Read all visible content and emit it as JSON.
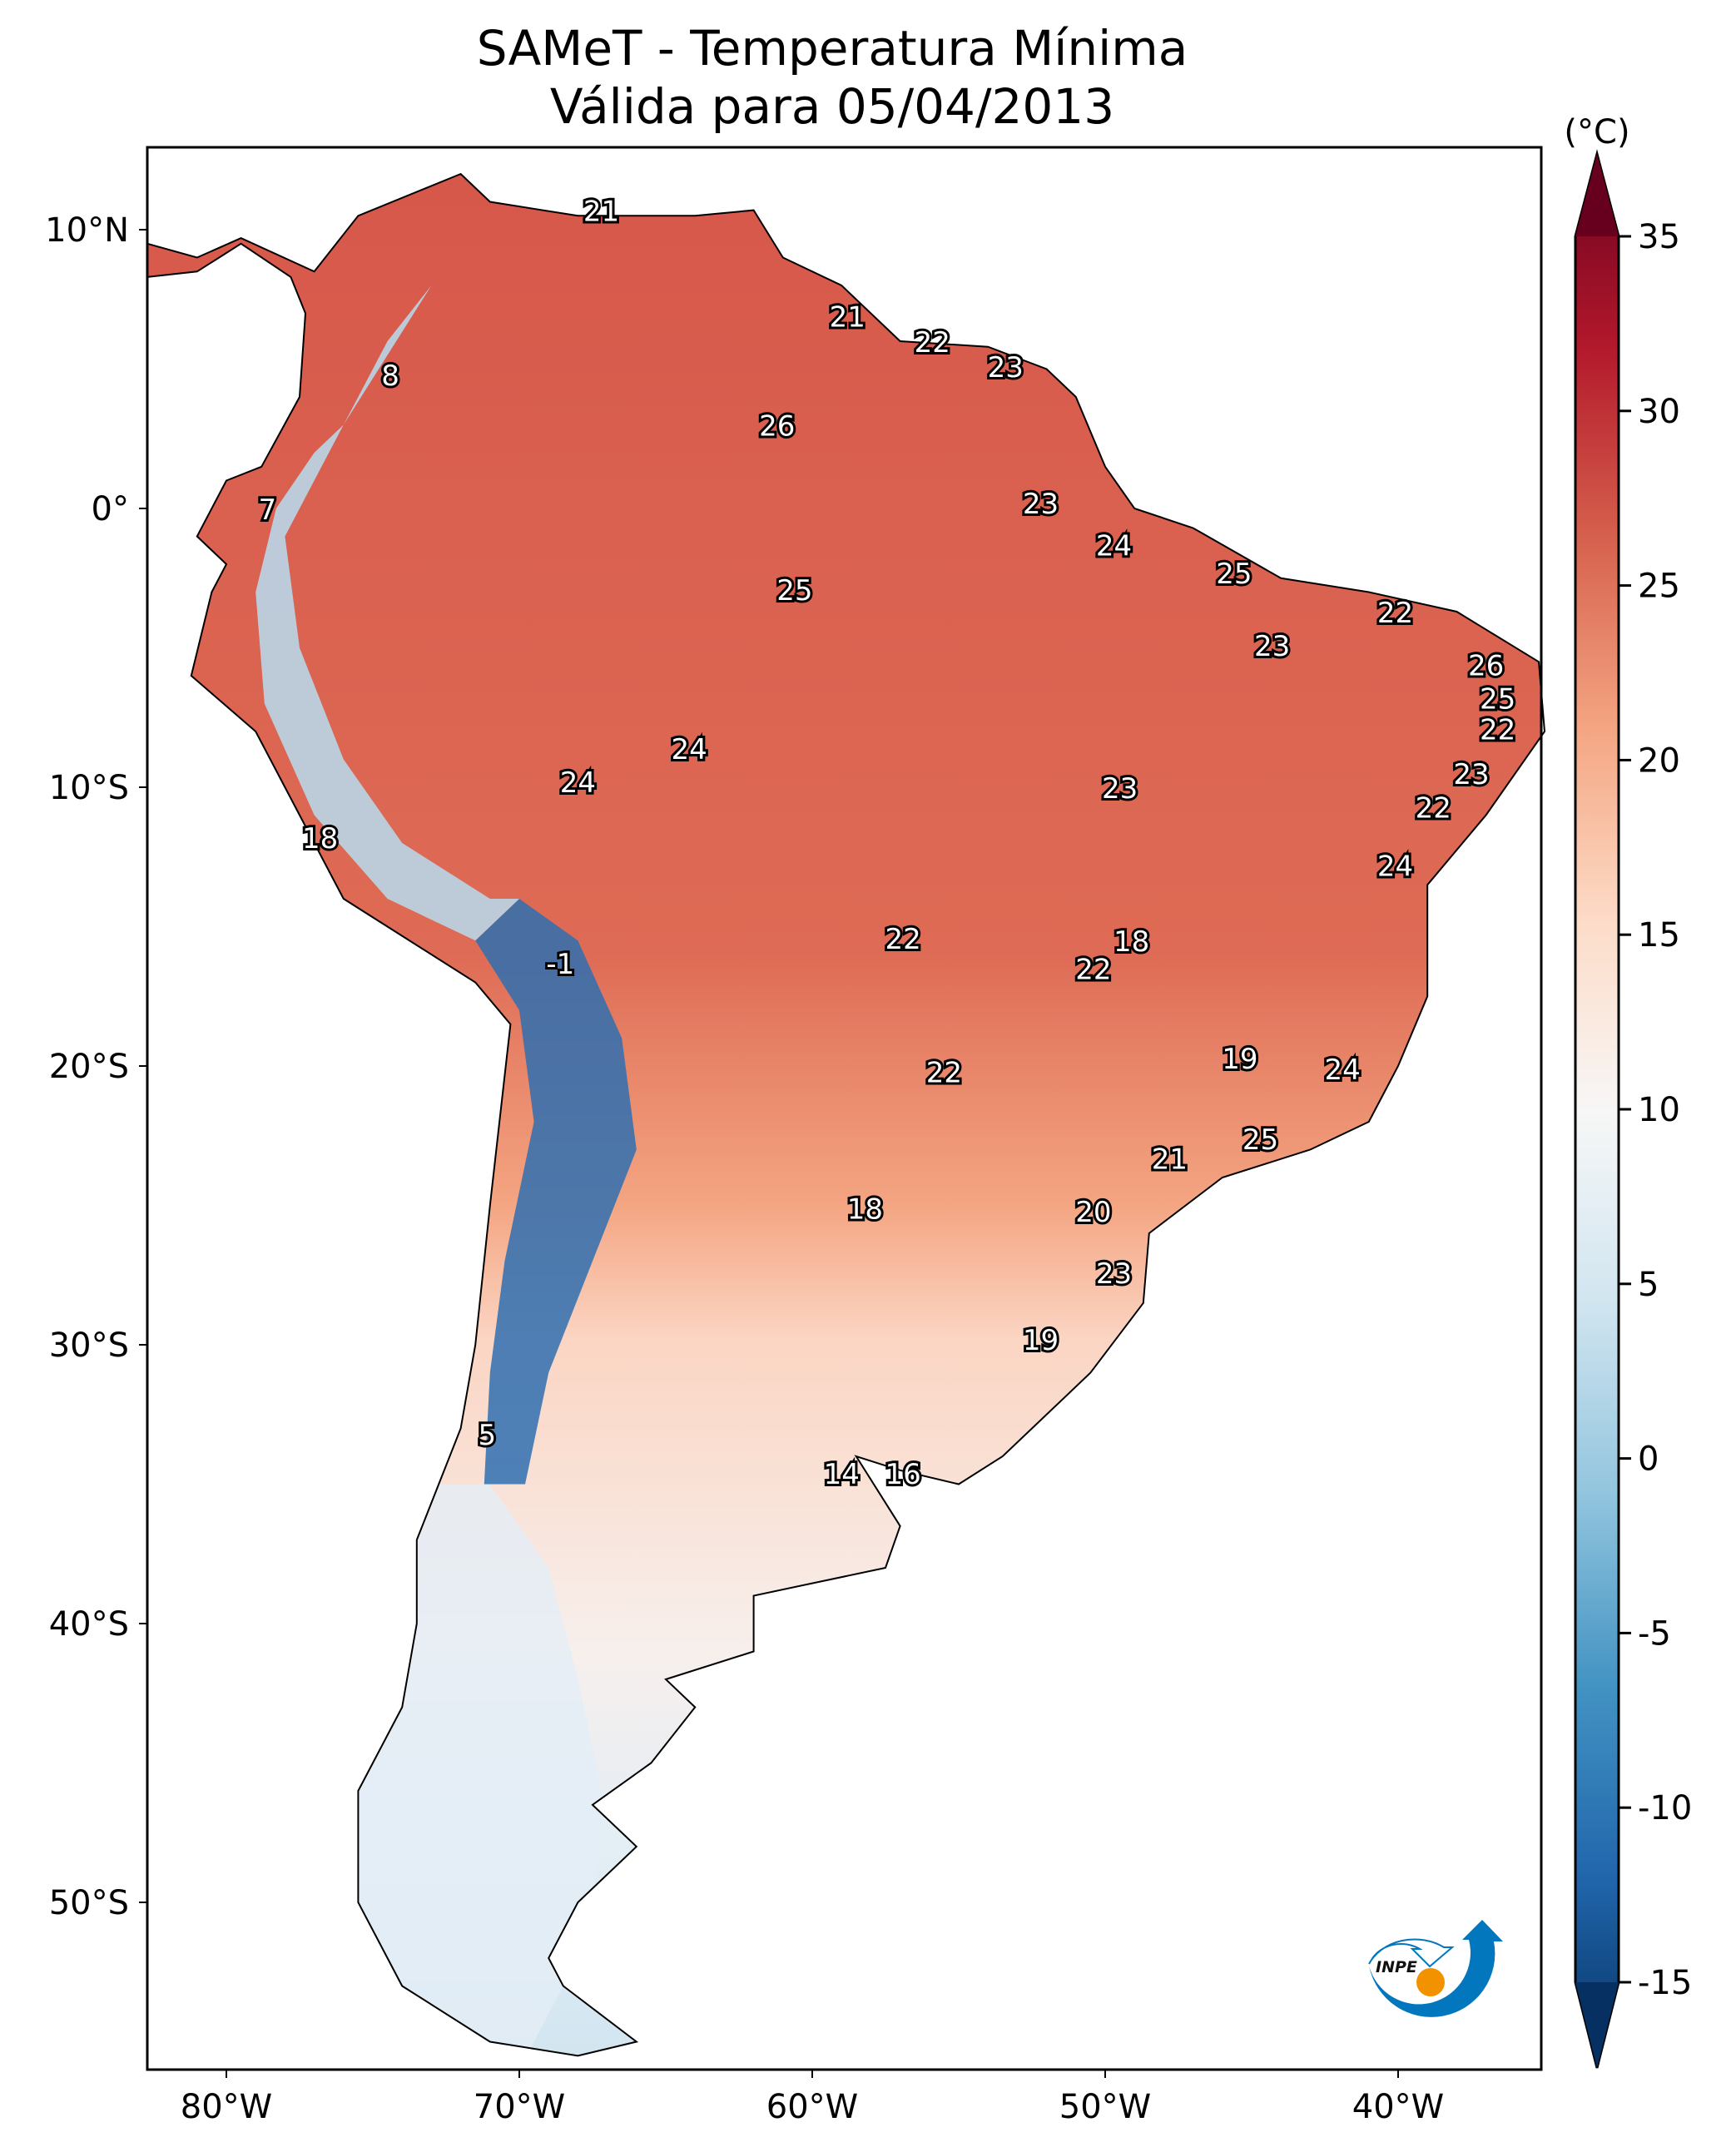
{
  "title": {
    "line1": "SAMeT - Temperatura Mínima",
    "line2": "Válida para 05/04/2013"
  },
  "colorbar": {
    "unit": "(°C)",
    "min": -15,
    "max": 35,
    "ticks": [
      "35",
      "30",
      "25",
      "20",
      "15",
      "10",
      "5",
      "0",
      "-5",
      "-10",
      "-15"
    ],
    "tick_values": [
      35,
      30,
      25,
      20,
      15,
      10,
      5,
      0,
      -5,
      -10,
      -15
    ],
    "colormap": "RdBu_r",
    "extend": "both",
    "colors": [
      "#053061",
      "#2166ac",
      "#4393c3",
      "#92c5de",
      "#d1e5f0",
      "#f7f7f7",
      "#fddbc7",
      "#f4a582",
      "#d6604d",
      "#b2182b",
      "#67001f"
    ]
  },
  "axes": {
    "lon_ticks": [
      {
        "label": "80°W",
        "value": -80
      },
      {
        "label": "70°W",
        "value": -70
      },
      {
        "label": "60°W",
        "value": -60
      },
      {
        "label": "50°W",
        "value": -50
      },
      {
        "label": "40°W",
        "value": -40
      }
    ],
    "lat_ticks": [
      {
        "label": "10°N",
        "value": 10
      },
      {
        "label": "0°",
        "value": 0
      },
      {
        "label": "10°S",
        "value": -10
      },
      {
        "label": "20°S",
        "value": -20
      },
      {
        "label": "30°S",
        "value": -30
      },
      {
        "label": "40°S",
        "value": -40
      },
      {
        "label": "50°S",
        "value": -50
      }
    ],
    "lon_range": [
      -82.7,
      -35.1
    ],
    "lat_range": [
      -56,
      12.9
    ]
  },
  "logo": {
    "text": "INPE",
    "blue": "#0277bd",
    "orange": "#f39200"
  },
  "labels": [
    {
      "v": "21",
      "lon": -67.2,
      "lat": 10.6
    },
    {
      "v": "8",
      "lon": -74.4,
      "lat": 4.7
    },
    {
      "v": "7",
      "lon": -78.6,
      "lat": -0.1
    },
    {
      "v": "26",
      "lon": -61.2,
      "lat": 2.9
    },
    {
      "v": "21",
      "lon": -58.8,
      "lat": 6.8
    },
    {
      "v": "22",
      "lon": -55.9,
      "lat": 5.9
    },
    {
      "v": "23",
      "lon": -53.4,
      "lat": 5.0
    },
    {
      "v": "23",
      "lon": -52.2,
      "lat": 0.1
    },
    {
      "v": "24",
      "lon": -49.7,
      "lat": -1.4
    },
    {
      "v": "25",
      "lon": -60.6,
      "lat": -3.0
    },
    {
      "v": "25",
      "lon": -45.6,
      "lat": -2.4
    },
    {
      "v": "22",
      "lon": -40.1,
      "lat": -3.8
    },
    {
      "v": "23",
      "lon": -44.3,
      "lat": -5.0
    },
    {
      "v": "26",
      "lon": -37.0,
      "lat": -5.7
    },
    {
      "v": "25",
      "lon": -36.6,
      "lat": -6.9
    },
    {
      "v": "22",
      "lon": -36.6,
      "lat": -8.0
    },
    {
      "v": "23",
      "lon": -37.5,
      "lat": -9.6
    },
    {
      "v": "22",
      "lon": -38.8,
      "lat": -10.8
    },
    {
      "v": "24",
      "lon": -40.1,
      "lat": -12.9
    },
    {
      "v": "24",
      "lon": -64.2,
      "lat": -8.7
    },
    {
      "v": "24",
      "lon": -68.0,
      "lat": -9.9
    },
    {
      "v": "23",
      "lon": -49.5,
      "lat": -10.1
    },
    {
      "v": "18",
      "lon": -76.8,
      "lat": -11.9
    },
    {
      "v": "-1",
      "lon": -68.6,
      "lat": -16.4
    },
    {
      "v": "22",
      "lon": -56.9,
      "lat": -15.5
    },
    {
      "v": "18",
      "lon": -49.1,
      "lat": -15.6
    },
    {
      "v": "22",
      "lon": -50.4,
      "lat": -16.6
    },
    {
      "v": "19",
      "lon": -45.4,
      "lat": -19.8
    },
    {
      "v": "24",
      "lon": -41.9,
      "lat": -20.2
    },
    {
      "v": "22",
      "lon": -55.5,
      "lat": -20.3
    },
    {
      "v": "25",
      "lon": -44.7,
      "lat": -22.7
    },
    {
      "v": "21",
      "lon": -47.8,
      "lat": -23.4
    },
    {
      "v": "18",
      "lon": -58.2,
      "lat": -25.2
    },
    {
      "v": "20",
      "lon": -50.4,
      "lat": -25.3
    },
    {
      "v": "23",
      "lon": -49.7,
      "lat": -27.5
    },
    {
      "v": "19",
      "lon": -52.2,
      "lat": -29.9
    },
    {
      "v": "5",
      "lon": -71.1,
      "lat": -33.3
    },
    {
      "v": "14",
      "lon": -59.0,
      "lat": -34.7
    },
    {
      "v": "16",
      "lon": -56.9,
      "lat": -34.7
    }
  ]
}
